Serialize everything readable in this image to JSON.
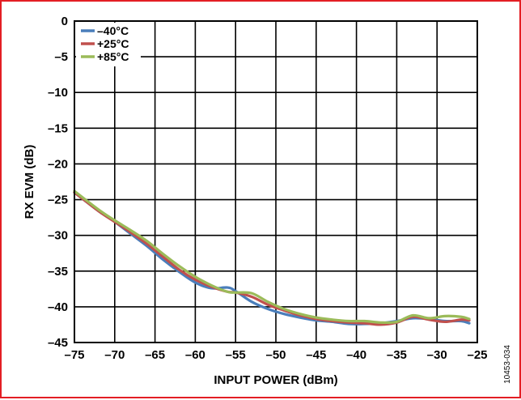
{
  "chart_data": {
    "type": "line",
    "xlabel": "INPUT POWER (dBm)",
    "ylabel": "RX EVM (dB)",
    "xlim": [
      -75,
      -25
    ],
    "ylim": [
      -45,
      0
    ],
    "x_ticks": [
      -75,
      -70,
      -65,
      -60,
      -55,
      -50,
      -45,
      -40,
      -35,
      -30,
      -25
    ],
    "y_ticks": [
      0,
      -5,
      -10,
      -15,
      -20,
      -25,
      -30,
      -35,
      -40,
      -45
    ],
    "x_tick_labels": [
      "–75",
      "–70",
      "–65",
      "–60",
      "–55",
      "–50",
      "–45",
      "–40",
      "–35",
      "–30",
      "–25"
    ],
    "y_tick_labels": [
      "0",
      "–5",
      "–10",
      "–15",
      "–20",
      "–25",
      "–30",
      "–35",
      "–40",
      "–45"
    ],
    "grid": true,
    "legend_position": "top-left",
    "figure_id": "10453-034",
    "series": [
      {
        "name": "–40°C",
        "color": "#4a7ebb",
        "points": [
          [
            -75,
            -24
          ],
          [
            -72,
            -26.6
          ],
          [
            -70,
            -28.1
          ],
          [
            -68,
            -29.8
          ],
          [
            -66,
            -31.5
          ],
          [
            -64,
            -33.4
          ],
          [
            -62,
            -35.1
          ],
          [
            -60,
            -36.6
          ],
          [
            -58,
            -37.4
          ],
          [
            -56,
            -37.3
          ],
          [
            -55,
            -37.8
          ],
          [
            -53,
            -39.3
          ],
          [
            -51,
            -40.3
          ],
          [
            -49,
            -41.0
          ],
          [
            -47,
            -41.5
          ],
          [
            -45,
            -41.9
          ],
          [
            -43,
            -42.1
          ],
          [
            -41,
            -42.4
          ],
          [
            -39,
            -42.4
          ],
          [
            -37,
            -42.3
          ],
          [
            -35,
            -42.0
          ],
          [
            -33,
            -41.6
          ],
          [
            -31,
            -41.7
          ],
          [
            -29,
            -42.0
          ],
          [
            -27,
            -42.0
          ],
          [
            -26,
            -42.3
          ]
        ]
      },
      {
        "name": "+25°C",
        "color": "#c0504d",
        "points": [
          [
            -75,
            -24
          ],
          [
            -72,
            -26.6
          ],
          [
            -70,
            -28.1
          ],
          [
            -68,
            -29.6
          ],
          [
            -66,
            -31.2
          ],
          [
            -64,
            -33.0
          ],
          [
            -62,
            -34.8
          ],
          [
            -60,
            -36.2
          ],
          [
            -58,
            -37.2
          ],
          [
            -56,
            -37.9
          ],
          [
            -55,
            -38.0
          ],
          [
            -53,
            -38.6
          ],
          [
            -51,
            -39.7
          ],
          [
            -49,
            -40.5
          ],
          [
            -47,
            -41.2
          ],
          [
            -45,
            -41.7
          ],
          [
            -43,
            -42.0
          ],
          [
            -41,
            -42.2
          ],
          [
            -39,
            -42.3
          ],
          [
            -37,
            -42.5
          ],
          [
            -35,
            -42.2
          ],
          [
            -33,
            -41.4
          ],
          [
            -31,
            -41.8
          ],
          [
            -29,
            -42.1
          ],
          [
            -27,
            -41.8
          ],
          [
            -26,
            -41.9
          ]
        ]
      },
      {
        "name": "+85°C",
        "color": "#9bbb59",
        "points": [
          [
            -75,
            -23.8
          ],
          [
            -72,
            -26.4
          ],
          [
            -70,
            -27.9
          ],
          [
            -68,
            -29.3
          ],
          [
            -66,
            -30.8
          ],
          [
            -64,
            -32.6
          ],
          [
            -62,
            -34.3
          ],
          [
            -60,
            -35.8
          ],
          [
            -58,
            -37.0
          ],
          [
            -56,
            -37.9
          ],
          [
            -55,
            -38.0
          ],
          [
            -53,
            -38.1
          ],
          [
            -51,
            -39.3
          ],
          [
            -49,
            -40.3
          ],
          [
            -47,
            -41.0
          ],
          [
            -45,
            -41.5
          ],
          [
            -43,
            -41.8
          ],
          [
            -41,
            -42.0
          ],
          [
            -39,
            -42.0
          ],
          [
            -37,
            -42.2
          ],
          [
            -35,
            -42.1
          ],
          [
            -33,
            -41.2
          ],
          [
            -31,
            -41.6
          ],
          [
            -29,
            -41.3
          ],
          [
            -27,
            -41.4
          ],
          [
            -26,
            -41.7
          ]
        ]
      }
    ]
  }
}
